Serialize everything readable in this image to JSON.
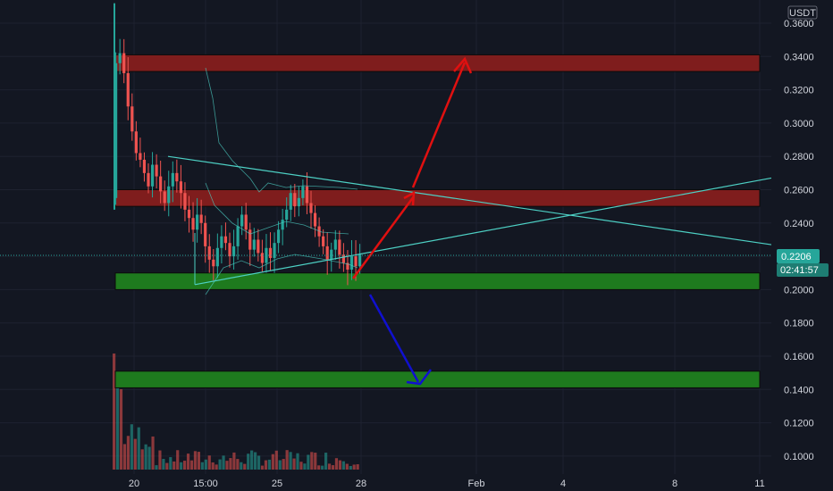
{
  "chart_data": {
    "type": "candlestick",
    "currency": "USDT",
    "last_price": "0.2206",
    "countdown": "02:41:57",
    "ylim": [
      0.088,
      0.372
    ],
    "y_ticks": [
      "0.3600",
      "0.3400",
      "0.3200",
      "0.3000",
      "0.2800",
      "0.2600",
      "0.2400",
      "0.2200",
      "0.2000",
      "0.1800",
      "0.1600",
      "0.1400",
      "0.1200",
      "0.1000"
    ],
    "x_ticks": [
      "20",
      "15:00",
      "25",
      "28",
      "Feb",
      "4",
      "8",
      "11"
    ],
    "grid": true,
    "zones": [
      {
        "name": "resistance-upper",
        "low": 0.331,
        "high": 0.341,
        "color": "#7f1d1d"
      },
      {
        "name": "resistance-mid",
        "low": 0.25,
        "high": 0.26,
        "color": "#7f1d1d"
      },
      {
        "name": "support-current",
        "low": 0.2,
        "high": 0.21,
        "color": "#1e7a1e"
      },
      {
        "name": "support-lower",
        "low": 0.141,
        "high": 0.151,
        "color": "#1e7a1e"
      }
    ],
    "colors": {
      "up": "#26a69a",
      "down": "#ef5350",
      "zone_red": "#7f1d1d",
      "zone_green": "#1e7a1e",
      "trendline": "#4dd0c4",
      "arrow_up": "#e01010",
      "arrow_down": "#1010d0",
      "badge": "#26a69a"
    }
  }
}
